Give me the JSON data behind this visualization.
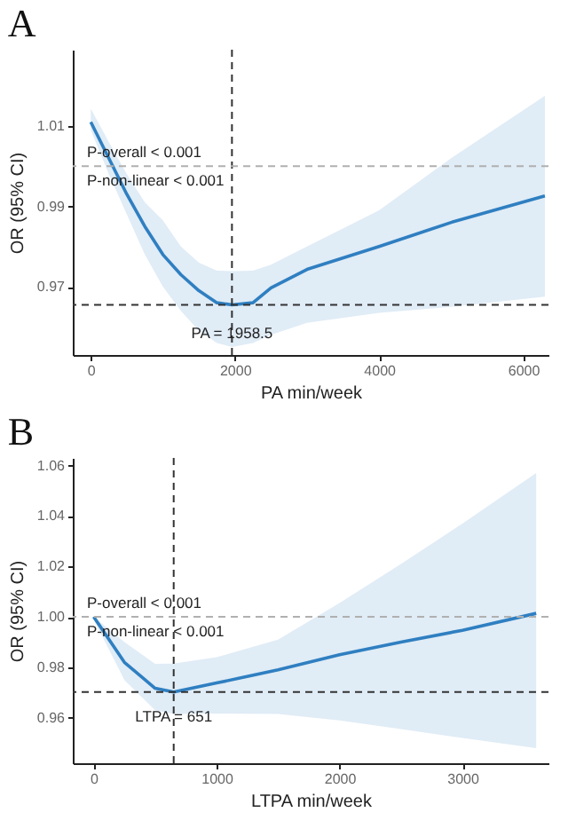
{
  "chart_data": [
    {
      "type": "line",
      "title": "A",
      "xlabel": "PA min/week",
      "ylabel": "OR (95% CI)",
      "xlim": [
        -250,
        6350
      ],
      "ylim": [
        0.953,
        1.029
      ],
      "xticks": [
        0,
        2000,
        4000,
        6000
      ],
      "yticks": [
        0.97,
        0.99,
        1.01
      ],
      "series": [
        {
          "color": "#2f7fc1",
          "x": [
            0,
            250,
            500,
            750,
            1000,
            1250,
            1500,
            1750,
            1958.5,
            2250,
            2500,
            3000,
            4000,
            5000,
            6300
          ],
          "values": [
            1.011,
            1.002,
            0.993,
            0.985,
            0.978,
            0.973,
            0.969,
            0.966,
            0.9655,
            0.966,
            0.9697,
            0.9743,
            0.98,
            0.986,
            0.9926
          ],
          "lower": [
            1.009,
            0.998,
            0.988,
            0.978,
            0.97,
            0.964,
            0.959,
            0.956,
            0.955,
            0.956,
            0.958,
            0.961,
            0.9635,
            0.965,
            0.9675
          ],
          "upper": [
            1.0143,
            1.006,
            0.998,
            0.991,
            0.9865,
            0.98,
            0.976,
            0.974,
            0.9739,
            0.974,
            0.9755,
            0.98,
            0.989,
            1.002,
            1.0175
          ]
        }
      ],
      "ref_lines": [
        {
          "axis": "x",
          "value": 1958.5,
          "color": "#333333",
          "line_style": "dashed"
        },
        {
          "axis": "y",
          "value": 0.9655,
          "color": "#333333",
          "line_style": "dashed"
        },
        {
          "axis": "y",
          "value": 1.0,
          "color": "#b0b0b0",
          "line_style": "dashed"
        }
      ],
      "annotations": [
        "P-overall < 0.001",
        "P-non-linear < 0.001",
        {
          "text": "PA = 1958.5",
          "x": 1958.5,
          "y": 0.9585
        }
      ]
    },
    {
      "type": "line",
      "title": "B",
      "xlabel": "LTPA min/week",
      "ylabel": "OR (95% CI)",
      "xlim": [
        -170,
        3700
      ],
      "ylim": [
        0.942,
        1.063
      ],
      "xticks": [
        0,
        1000,
        2000,
        3000
      ],
      "yticks": [
        0.96,
        0.98,
        {
          "value": 1.0,
          "label": "1.00"
        },
        1.02,
        1.04,
        1.06
      ],
      "series": [
        {
          "color": "#2f7fc1",
          "x": [
            0,
            250,
            500,
            651,
            1000,
            1500,
            2000,
            2500,
            3000,
            3600
          ],
          "values": [
            1.0,
            0.982,
            0.9717,
            0.9702,
            0.9738,
            0.979,
            0.985,
            0.99,
            0.9947,
            1.0014
          ],
          "lower": [
            0.999,
            0.975,
            0.963,
            0.9615,
            0.9617,
            0.9615,
            0.959,
            0.9555,
            0.952,
            0.948
          ],
          "upper": [
            1.0,
            0.99,
            0.9814,
            0.9815,
            0.984,
            0.991,
            1.0055,
            1.021,
            1.037,
            1.057
          ]
        }
      ],
      "ref_lines": [
        {
          "axis": "x",
          "value": 651,
          "color": "#333333",
          "line_style": "dashed"
        },
        {
          "axis": "y",
          "value": 0.9702,
          "color": "#333333",
          "line_style": "dashed"
        },
        {
          "axis": "y",
          "value": 1.0,
          "color": "#b0b0b0",
          "line_style": "dashed"
        }
      ],
      "annotations": [
        "P-overall < 0.001",
        "P-non-linear < 0.001",
        {
          "text": "LTPA = 651",
          "x": 651,
          "y": 0.9605
        }
      ]
    }
  ]
}
